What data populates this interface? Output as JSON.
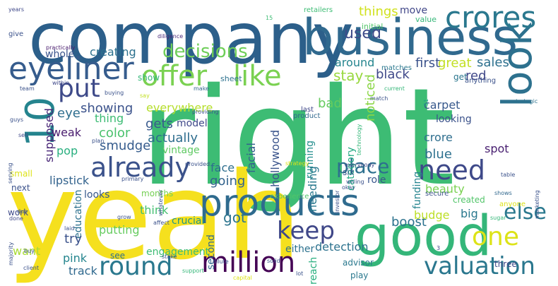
{
  "words": [
    {
      "text": "right",
      "color": "#3dbc74"
    },
    {
      "text": "yeah",
      "color": "#f5e01e"
    },
    {
      "text": "company",
      "color": "#2c5f8a"
    },
    {
      "text": "business",
      "color": "#30698e"
    },
    {
      "text": "good",
      "color": "#34b679"
    },
    {
      "text": "products",
      "color": "#2f6b8e"
    },
    {
      "text": "look",
      "color": "#2d718e"
    },
    {
      "text": "eyeliner",
      "color": "#365c8d"
    },
    {
      "text": "offer",
      "color": "#7ad151"
    },
    {
      "text": "like",
      "color": "#7ad151"
    },
    {
      "text": "crores",
      "color": "#2a788e"
    },
    {
      "text": "already",
      "color": "#3b528b"
    },
    {
      "text": "million",
      "color": "#440154"
    },
    {
      "text": "round",
      "color": "#2a788e"
    },
    {
      "text": "need",
      "color": "#3e4989"
    },
    {
      "text": "10",
      "color": "#25848e"
    },
    {
      "text": "put",
      "color": "#3e4a89"
    },
    {
      "text": "keep",
      "color": "#3f4788"
    },
    {
      "text": "valuation",
      "color": "#2a778e"
    },
    {
      "text": "one",
      "color": "#dde318"
    },
    {
      "text": "else",
      "color": "#2a788e"
    },
    {
      "text": "decisions",
      "color": "#6ece58"
    },
    {
      "text": "used",
      "color": "#3e4c8a"
    },
    {
      "text": "things",
      "color": "#d0e11c"
    },
    {
      "text": "move",
      "color": "#404688"
    },
    {
      "text": "creating",
      "color": "#2c718e"
    },
    {
      "text": "whole",
      "color": "#3a548c"
    },
    {
      "text": "around",
      "color": "#25858e"
    },
    {
      "text": "first",
      "color": "#3b528b"
    },
    {
      "text": "great",
      "color": "#c2df23"
    },
    {
      "text": "sales",
      "color": "#2d708e"
    },
    {
      "text": "stay",
      "color": "#98d83e"
    },
    {
      "text": "black",
      "color": "#3f4889"
    },
    {
      "text": "red",
      "color": "#3f4788"
    },
    {
      "text": "get",
      "color": "#2a768e"
    },
    {
      "text": "noticed",
      "color": "#8bd646"
    },
    {
      "text": "show",
      "color": "#35b779"
    },
    {
      "text": "weak",
      "color": "#481b6d"
    },
    {
      "text": "eye",
      "color": "#2e6e8e"
    },
    {
      "text": "thing",
      "color": "#3dbc74"
    },
    {
      "text": "showing",
      "color": "#3b528b"
    },
    {
      "text": "color",
      "color": "#4ac16d"
    },
    {
      "text": "smudge",
      "color": "#365c8d"
    },
    {
      "text": "actually",
      "color": "#2e6d8e"
    },
    {
      "text": "gets",
      "color": "#38598c"
    },
    {
      "text": "model",
      "color": "#3f4889"
    },
    {
      "text": "everywhere",
      "color": "#b5de2b"
    },
    {
      "text": "vintage",
      "color": "#5ec962"
    },
    {
      "text": "supposed",
      "color": "#482677"
    },
    {
      "text": "pop",
      "color": "#29af7f"
    },
    {
      "text": "lipstick",
      "color": "#33638d"
    },
    {
      "text": "looks",
      "color": "#38598c"
    },
    {
      "text": "facial",
      "color": "#34618d"
    },
    {
      "text": "face",
      "color": "#2e6e8e"
    },
    {
      "text": "hollywood",
      "color": "#3a548c"
    },
    {
      "text": "bad",
      "color": "#65cb5e"
    },
    {
      "text": "place",
      "color": "#2d708e"
    },
    {
      "text": "running",
      "color": "#228d8d"
    },
    {
      "text": "needing",
      "color": "#29798e"
    },
    {
      "text": "category",
      "color": "#23a983"
    },
    {
      "text": "looking",
      "color": "#3b528b"
    },
    {
      "text": "blue",
      "color": "#2d708e"
    },
    {
      "text": "crore",
      "color": "#2e6e8e"
    },
    {
      "text": "carpet",
      "color": "#38598c"
    },
    {
      "text": "spot",
      "color": "#481f70"
    },
    {
      "text": "going",
      "color": "#33638d"
    },
    {
      "text": "six",
      "color": "#38598c"
    },
    {
      "text": "funding",
      "color": "#25848e"
    },
    {
      "text": "role",
      "color": "#39568c"
    },
    {
      "text": "beauty",
      "color": "#7ad151"
    },
    {
      "text": "think",
      "color": "#44bf70"
    },
    {
      "text": "education",
      "color": "#2c718e"
    },
    {
      "text": "putting",
      "color": "#65cb5e"
    },
    {
      "text": "got",
      "color": "#2b748e"
    },
    {
      "text": "second",
      "color": "#31688e"
    },
    {
      "text": "either",
      "color": "#2c718e"
    },
    {
      "text": "detection",
      "color": "#2c728e"
    },
    {
      "text": "boost",
      "color": "#2c728e"
    },
    {
      "text": "budge",
      "color": "#bddf26"
    },
    {
      "text": "big",
      "color": "#2a788e"
    },
    {
      "text": "reach",
      "color": "#29af7f"
    },
    {
      "text": "pink",
      "color": "#25858e"
    },
    {
      "text": "try",
      "color": "#3b528b"
    },
    {
      "text": "want",
      "color": "#a8db34"
    },
    {
      "text": "track",
      "color": "#30698e"
    },
    {
      "text": "see",
      "color": "#2e6e8e"
    },
    {
      "text": "engagement",
      "color": "#3dbc74"
    },
    {
      "text": "advisor",
      "color": "#2a788e"
    },
    {
      "text": "play",
      "color": "#2a788e"
    },
    {
      "text": "three",
      "color": "#3f4889"
    },
    {
      "text": "crucial",
      "color": "#1f958b"
    },
    {
      "text": "months",
      "color": "#75d054"
    },
    {
      "text": "work",
      "color": "#3e4a89"
    },
    {
      "text": "next",
      "color": "#3b528b"
    },
    {
      "text": "small",
      "color": "#dde318"
    },
    {
      "text": "years",
      "color": "#3f4889"
    },
    {
      "text": "give",
      "color": "#3b528b"
    },
    {
      "text": "practically",
      "color": "#481b6d"
    },
    {
      "text": "diligence",
      "color": "#482677"
    },
    {
      "text": "retailers",
      "color": "#3dbc74"
    },
    {
      "text": "initial",
      "color": "#52c569"
    },
    {
      "text": "value",
      "color": "#35b779"
    },
    {
      "text": "15",
      "color": "#3dbc74"
    },
    {
      "text": "matches",
      "color": "#2a788e"
    },
    {
      "text": "51",
      "color": "#1f9e89"
    },
    {
      "text": "team",
      "color": "#3b528b"
    },
    {
      "text": "within",
      "color": "#3f4889"
    },
    {
      "text": "make",
      "color": "#31688e"
    },
    {
      "text": "current",
      "color": "#35b779"
    },
    {
      "text": "match",
      "color": "#3b528b"
    },
    {
      "text": "anything",
      "color": "#3b528b"
    },
    {
      "text": "sheet",
      "color": "#2c728e"
    },
    {
      "text": "buying",
      "color": "#3b528b"
    },
    {
      "text": "say",
      "color": "#c2df23"
    },
    {
      "text": "strategic",
      "color": "#2c728e"
    },
    {
      "text": "last",
      "color": "#3f4889"
    },
    {
      "text": "providing",
      "color": "#3b528b"
    },
    {
      "text": "technology",
      "color": "#35b779"
    },
    {
      "text": "guys",
      "color": "#3b528b"
    },
    {
      "text": "sell",
      "color": "#3f4889"
    },
    {
      "text": "plan",
      "color": "#3b528b"
    },
    {
      "text": "primary",
      "color": "#3b528b"
    },
    {
      "text": "product",
      "color": "#31688e"
    },
    {
      "text": "serving",
      "color": "#3b528b"
    },
    {
      "text": "provided",
      "color": "#3b528b"
    },
    {
      "text": "whatever",
      "color": "#3b528b"
    },
    {
      "text": "strategy",
      "color": "#dde318"
    },
    {
      "text": "investor",
      "color": "#3b528b"
    },
    {
      "text": "everybody",
      "color": "#3f4889"
    },
    {
      "text": "okay",
      "color": "#3b528b"
    },
    {
      "text": "willing",
      "color": "#3b528b"
    },
    {
      "text": "marketing",
      "color": "#3b528b"
    },
    {
      "text": "table",
      "color": "#3b528b"
    },
    {
      "text": "shows",
      "color": "#31688e"
    },
    {
      "text": "anyone",
      "color": "#dde318"
    },
    {
      "text": "sugar",
      "color": "#35b779"
    },
    {
      "text": "created",
      "color": "#52c569"
    },
    {
      "text": "secure",
      "color": "#3b528b"
    },
    {
      "text": "experience",
      "color": "#52c569"
    },
    {
      "text": "majority",
      "color": "#3b528b"
    },
    {
      "text": "done",
      "color": "#3f4889"
    },
    {
      "text": "due",
      "color": "#3b528b"
    },
    {
      "text": "laid",
      "color": "#3b528b"
    },
    {
      "text": "client",
      "color": "#3b528b"
    },
    {
      "text": "buy",
      "color": "#3b528b"
    },
    {
      "text": "grow",
      "color": "#3b528b"
    },
    {
      "text": "affect",
      "color": "#3b528b"
    },
    {
      "text": "stake",
      "color": "#3b528b"
    },
    {
      "text": "dilute",
      "color": "#3b528b"
    },
    {
      "text": "support",
      "color": "#35b779"
    },
    {
      "text": "capital",
      "color": "#dde318"
    },
    {
      "text": "solid",
      "color": "#3b528b"
    },
    {
      "text": "lot",
      "color": "#3b528b"
    },
    {
      "text": "3",
      "color": "#3f4889"
    }
  ]
}
